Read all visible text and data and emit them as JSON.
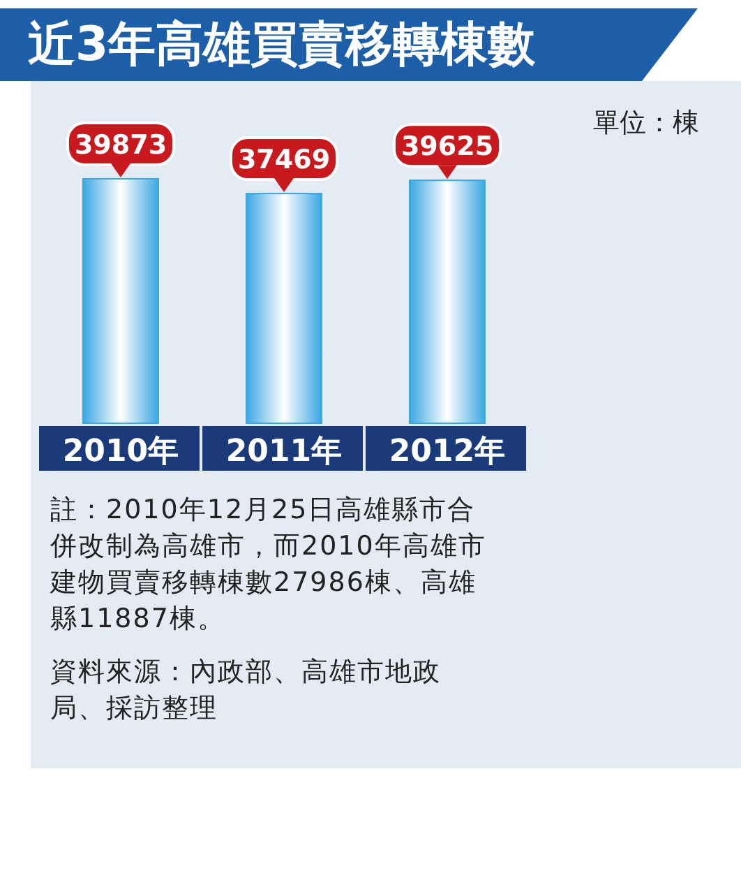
{
  "chart_data": {
    "type": "bar",
    "title": "近3年高雄買賣移轉棟數",
    "categories": [
      "2010年",
      "2011年",
      "2012年"
    ],
    "values": [
      39873,
      37469,
      39625
    ],
    "color": "#3aa8e2",
    "data_labels": true,
    "annotations": [
      "單位：棟",
      "註：2010年12月25日高雄縣市合併改制為高雄市，而2010年高雄市建物買賣移轉棟數27986棟、高雄縣11887棟。",
      "資料來源：內政部、高雄市地政局、採訪整理"
    ]
  }
}
